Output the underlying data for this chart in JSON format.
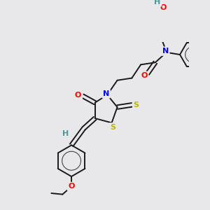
{
  "background_color": "#e8e8eb",
  "atom_colors": {
    "C": "#000000",
    "H": "#4a9a9a",
    "N": "#0000ff",
    "O": "#ff0000",
    "S": "#b8b800"
  },
  "bond_color": "#1a1a1a",
  "bond_width": 1.4,
  "figsize": [
    3.0,
    3.0
  ],
  "dpi": 100
}
